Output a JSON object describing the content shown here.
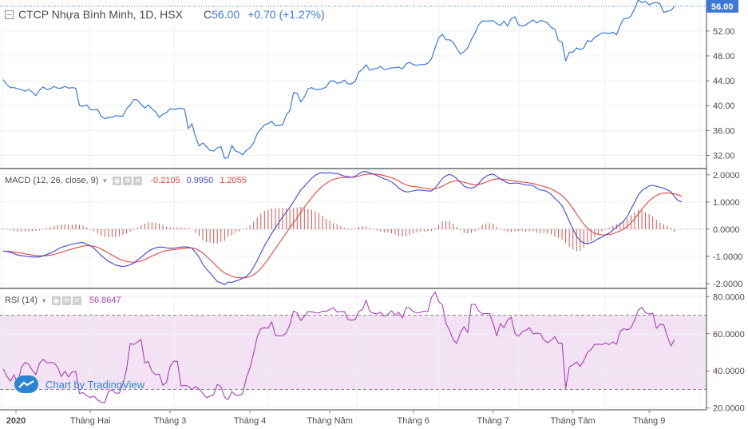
{
  "header": {
    "symbol": "CTCP Nhựa Bình Minh, 1D, HSX",
    "close_prefix": "C",
    "close": "56.00",
    "change": "+0.70 (+1.27%)",
    "last_price_tag": "56.00"
  },
  "macd_legend": {
    "label": "MACD (12, 26, close, 9)",
    "hist": "-0.2105",
    "macd": "0.9950",
    "signal": "1.2055"
  },
  "rsi_legend": {
    "label": "RSI (14)",
    "value": "56.8647"
  },
  "brand": {
    "text": "Chart by TradingView"
  },
  "colors": {
    "price_line": "#3c78d8",
    "macd_line": "#3d45d8",
    "signal_line": "#e8433d",
    "histogram": "#d8504c",
    "rsi_line": "#a83fb8",
    "rsi_band": "#f3e2f3",
    "last_price_tag": "#3c78d8"
  },
  "chart_data": [
    {
      "type": "line",
      "name": "price",
      "ylim": [
        30,
        57
      ],
      "y_ticks": [
        "56.00",
        "52.00",
        "48.00",
        "44.00",
        "40.00",
        "36.00",
        "32.00"
      ],
      "x_tick_labels": [
        "2020",
        "Tháng Hai",
        "Tháng 3",
        "Tháng 4",
        "Tháng Năm",
        "Tháng 6",
        "Tháng 7",
        "Tháng Tám",
        "Tháng 9"
      ],
      "x_tick_index": [
        0,
        24,
        46,
        68,
        90,
        113,
        135,
        157,
        178
      ],
      "grid": true,
      "values": [
        44.2,
        43.4,
        42.9,
        42.9,
        42.7,
        42.6,
        42.3,
        42.6,
        42.2,
        41.6,
        42.5,
        43.0,
        42.6,
        42.7,
        43.1,
        42.8,
        42.8,
        43.1,
        42.8,
        42.9,
        42.8,
        40.0,
        39.9,
        40.1,
        39.4,
        39.3,
        39.4,
        38.3,
        37.9,
        38.1,
        38.1,
        38.4,
        38.3,
        38.3,
        39.5,
        40.1,
        41.0,
        40.9,
        40.2,
        39.6,
        40.1,
        39.5,
        39.0,
        38.1,
        38.6,
        38.9,
        39.5,
        39.4,
        39.5,
        39.6,
        39.4,
        36.3,
        37.1,
        35.0,
        33.5,
        34.0,
        33.4,
        32.8,
        32.7,
        33.2,
        33.4,
        31.5,
        31.7,
        33.6,
        32.7,
        32.5,
        32.1,
        32.8,
        33.2,
        34.0,
        35.5,
        36.2,
        36.9,
        37.1,
        37.5,
        36.8,
        36.8,
        36.9,
        38.5,
        39.2,
        42.1,
        42.0,
        40.6,
        41.4,
        42.7,
        42.9,
        42.6,
        42.6,
        42.7,
        43.0,
        43.9,
        44.0,
        43.6,
        43.7,
        44.1,
        43.5,
        43.5,
        43.9,
        45.4,
        45.8,
        46.6,
        45.7,
        45.9,
        46.0,
        46.3,
        45.8,
        45.9,
        46.1,
        46.1,
        46.2,
        45.9,
        46.7,
        47.0,
        46.6,
        46.5,
        46.6,
        46.6,
        46.8,
        47.5,
        49.3,
        50.9,
        51.5,
        50.6,
        50.6,
        50.2,
        49.2,
        48.3,
        48.7,
        49.3,
        50.6,
        51.7,
        53.0,
        53.6,
        53.6,
        53.6,
        53.7,
        53.2,
        52.9,
        53.6,
        52.8,
        54.0,
        54.3,
        53.0,
        52.8,
        53.0,
        53.4,
        53.8,
        53.3,
        53.7,
        53.6,
        53.3,
        52.6,
        52.3,
        50.5,
        50.2,
        47.2,
        48.6,
        48.6,
        49.3,
        49.0,
        49.3,
        50.5,
        50.3,
        51.0,
        51.3,
        51.7,
        51.7,
        51.6,
        51.8,
        51.4,
        52.9,
        54.0,
        54.0,
        54.4,
        55.6,
        57.0,
        56.6,
        56.8,
        56.2,
        56.5,
        56.6,
        56.4,
        55.0,
        55.2,
        55.3,
        56.0
      ]
    },
    {
      "type": "line",
      "name": "MACD (12, 26, close, 9)",
      "ylim": [
        -2.15,
        2.2
      ],
      "y_ticks": [
        "2.0000",
        "1.0000",
        "0.0000",
        "-1.0000",
        "-2.0000"
      ],
      "macd": [
        -0.81,
        -0.82,
        -0.85,
        -0.9,
        -0.95,
        -0.97,
        -0.99,
        -1.01,
        -1.02,
        -1.03,
        -1.02,
        -0.98,
        -0.93,
        -0.88,
        -0.82,
        -0.74,
        -0.67,
        -0.63,
        -0.59,
        -0.56,
        -0.52,
        -0.5,
        -0.49,
        -0.55,
        -0.61,
        -0.7,
        -0.83,
        -0.97,
        -1.08,
        -1.18,
        -1.25,
        -1.32,
        -1.35,
        -1.37,
        -1.35,
        -1.31,
        -1.25,
        -1.13,
        -1.03,
        -0.92,
        -0.81,
        -0.74,
        -0.69,
        -0.66,
        -0.66,
        -0.69,
        -0.7,
        -0.7,
        -0.68,
        -0.66,
        -0.65,
        -0.66,
        -0.7,
        -0.85,
        -1.04,
        -1.28,
        -1.47,
        -1.61,
        -1.77,
        -1.93,
        -1.97,
        -2.04,
        -1.95,
        -1.96,
        -1.91,
        -1.87,
        -1.8,
        -1.74,
        -1.61,
        -1.4,
        -1.15,
        -0.88,
        -0.61,
        -0.39,
        -0.15,
        0.04,
        0.25,
        0.45,
        0.63,
        0.8,
        1.01,
        1.22,
        1.44,
        1.58,
        1.73,
        1.87,
        1.98,
        2.06,
        2.08,
        2.06,
        2.08,
        2.05,
        2.06,
        2.0,
        1.95,
        1.93,
        1.91,
        1.94,
        2.04,
        2.11,
        2.12,
        2.07,
        2.03,
        1.97,
        1.91,
        1.85,
        1.81,
        1.74,
        1.64,
        1.51,
        1.42,
        1.37,
        1.38,
        1.41,
        1.44,
        1.44,
        1.42,
        1.41,
        1.4,
        1.52,
        1.68,
        1.86,
        1.96,
        2.02,
        1.96,
        1.86,
        1.72,
        1.58,
        1.53,
        1.51,
        1.55,
        1.67,
        1.84,
        1.94,
        2.0,
        2.03,
        1.94,
        1.84,
        1.77,
        1.7,
        1.68,
        1.7,
        1.69,
        1.66,
        1.63,
        1.62,
        1.6,
        1.51,
        1.44,
        1.43,
        1.37,
        1.28,
        1.13,
        1.01,
        0.86,
        0.59,
        0.29,
        0.01,
        -0.26,
        -0.43,
        -0.51,
        -0.53,
        -0.5,
        -0.43,
        -0.35,
        -0.29,
        -0.21,
        -0.14,
        -0.04,
        0.08,
        0.18,
        0.3,
        0.47,
        0.75,
        0.99,
        1.25,
        1.42,
        1.51,
        1.59,
        1.61,
        1.58,
        1.54,
        1.51,
        1.45,
        1.37,
        1.2,
        1.05,
        1.0
      ],
      "signal": [
        -0.81,
        -0.81,
        -0.82,
        -0.84,
        -0.86,
        -0.88,
        -0.91,
        -0.93,
        -0.95,
        -0.97,
        -0.98,
        -0.98,
        -0.97,
        -0.95,
        -0.93,
        -0.89,
        -0.85,
        -0.81,
        -0.77,
        -0.73,
        -0.69,
        -0.66,
        -0.62,
        -0.61,
        -0.61,
        -0.63,
        -0.67,
        -0.73,
        -0.8,
        -0.88,
        -0.96,
        -1.03,
        -1.1,
        -1.15,
        -1.19,
        -1.21,
        -1.22,
        -1.2,
        -1.17,
        -1.12,
        -1.06,
        -0.99,
        -0.93,
        -0.87,
        -0.82,
        -0.79,
        -0.77,
        -0.75,
        -0.74,
        -0.72,
        -0.7,
        -0.69,
        -0.69,
        -0.72,
        -0.79,
        -0.88,
        -1.0,
        -1.12,
        -1.25,
        -1.39,
        -1.51,
        -1.61,
        -1.67,
        -1.73,
        -1.77,
        -1.79,
        -1.79,
        -1.78,
        -1.75,
        -1.68,
        -1.58,
        -1.44,
        -1.28,
        -1.1,
        -0.91,
        -0.72,
        -0.52,
        -0.33,
        -0.14,
        0.05,
        0.23,
        0.42,
        0.62,
        0.81,
        0.99,
        1.16,
        1.32,
        1.46,
        1.59,
        1.68,
        1.77,
        1.83,
        1.87,
        1.89,
        1.9,
        1.9,
        1.91,
        1.92,
        1.95,
        1.99,
        2.02,
        2.03,
        2.03,
        2.02,
        2.0,
        1.97,
        1.93,
        1.89,
        1.84,
        1.77,
        1.69,
        1.63,
        1.59,
        1.57,
        1.56,
        1.53,
        1.51,
        1.49,
        1.47,
        1.48,
        1.52,
        1.58,
        1.65,
        1.72,
        1.76,
        1.78,
        1.76,
        1.72,
        1.69,
        1.65,
        1.63,
        1.64,
        1.68,
        1.73,
        1.78,
        1.83,
        1.85,
        1.85,
        1.83,
        1.81,
        1.78,
        1.77,
        1.75,
        1.73,
        1.72,
        1.7,
        1.68,
        1.64,
        1.6,
        1.57,
        1.53,
        1.48,
        1.41,
        1.33,
        1.24,
        1.11,
        0.95,
        0.76,
        0.56,
        0.36,
        0.18,
        0.04,
        -0.07,
        -0.15,
        -0.19,
        -0.21,
        -0.21,
        -0.2,
        -0.17,
        -0.12,
        -0.06,
        0.01,
        0.1,
        0.23,
        0.38,
        0.55,
        0.73,
        0.89,
        1.04,
        1.15,
        1.24,
        1.3,
        1.33,
        1.33,
        1.32,
        1.3,
        1.26,
        1.21
      ]
    },
    {
      "type": "line",
      "name": "RSI (14)",
      "ylim": [
        19.0,
        84.0
      ],
      "y_ticks": [
        "80.0000",
        "60.0000",
        "40.0000",
        "20.0000"
      ],
      "band": [
        30,
        70
      ],
      "values": [
        41.1,
        37.2,
        34.5,
        37.9,
        32.8,
        42.0,
        44.5,
        43.5,
        40.4,
        38.0,
        44.1,
        46.2,
        44.4,
        44.5,
        44.3,
        42.0,
        36.9,
        39.8,
        36.7,
        39.5,
        39.6,
        27.8,
        28.3,
        26.6,
        25.6,
        26.5,
        24.4,
        23.1,
        22.8,
        28.9,
        29.8,
        28.0,
        28.1,
        32.9,
        41.1,
        54.7,
        54.2,
        55.5,
        56.9,
        44.3,
        45.1,
        39.7,
        38.0,
        38.1,
        32.2,
        33.8,
        42.5,
        45.2,
        45.1,
        31.9,
        32.2,
        31.7,
        29.8,
        31.6,
        30.1,
        28.0,
        25.6,
        26.3,
        27.1,
        32.7,
        31.5,
        25.8,
        24.5,
        28.9,
        27.0,
        26.7,
        27.8,
        36.3,
        41.6,
        49.5,
        58.3,
        62.8,
        63.2,
        63.0,
        66.4,
        59.2,
        58.8,
        58.9,
        60.4,
        64.9,
        72.2,
        71.3,
        67.1,
        69.4,
        72.0,
        71.8,
        71.4,
        71.1,
        72.3,
        72.0,
        73.1,
        74.0,
        71.7,
        71.9,
        72.0,
        67.7,
        67.3,
        67.6,
        72.1,
        73.0,
        78.1,
        72.1,
        71.0,
        70.8,
        71.6,
        69.5,
        70.3,
        72.4,
        70.0,
        71.6,
        68.5,
        74.0,
        73.9,
        71.9,
        71.3,
        71.5,
        72.2,
        72.0,
        79.4,
        82.5,
        77.4,
        75.6,
        65.6,
        61.8,
        56.7,
        54.8,
        60.7,
        63.8,
        60.7,
        75.8,
        75.8,
        72.4,
        70.6,
        70.9,
        70.9,
        65.7,
        58.8,
        65.4,
        63.2,
        67.4,
        68.9,
        60.3,
        58.6,
        61.0,
        61.8,
        63.3,
        60.0,
        60.3,
        60.1,
        56.7,
        55.1,
        56.5,
        58.4,
        54.9,
        55.0,
        30.6,
        42.1,
        43.2,
        44.8,
        42.4,
        45.6,
        50.0,
        51.6,
        54.2,
        54.4,
        54.1,
        55.1,
        54.1,
        55.6,
        54.3,
        61.2,
        62.7,
        62.1,
        63.2,
        67.3,
        72.8,
        74.2,
        71.3,
        70.7,
        71.1,
        62.8,
        65.1,
        64.9,
        58.7,
        53.4,
        56.8
      ]
    }
  ]
}
